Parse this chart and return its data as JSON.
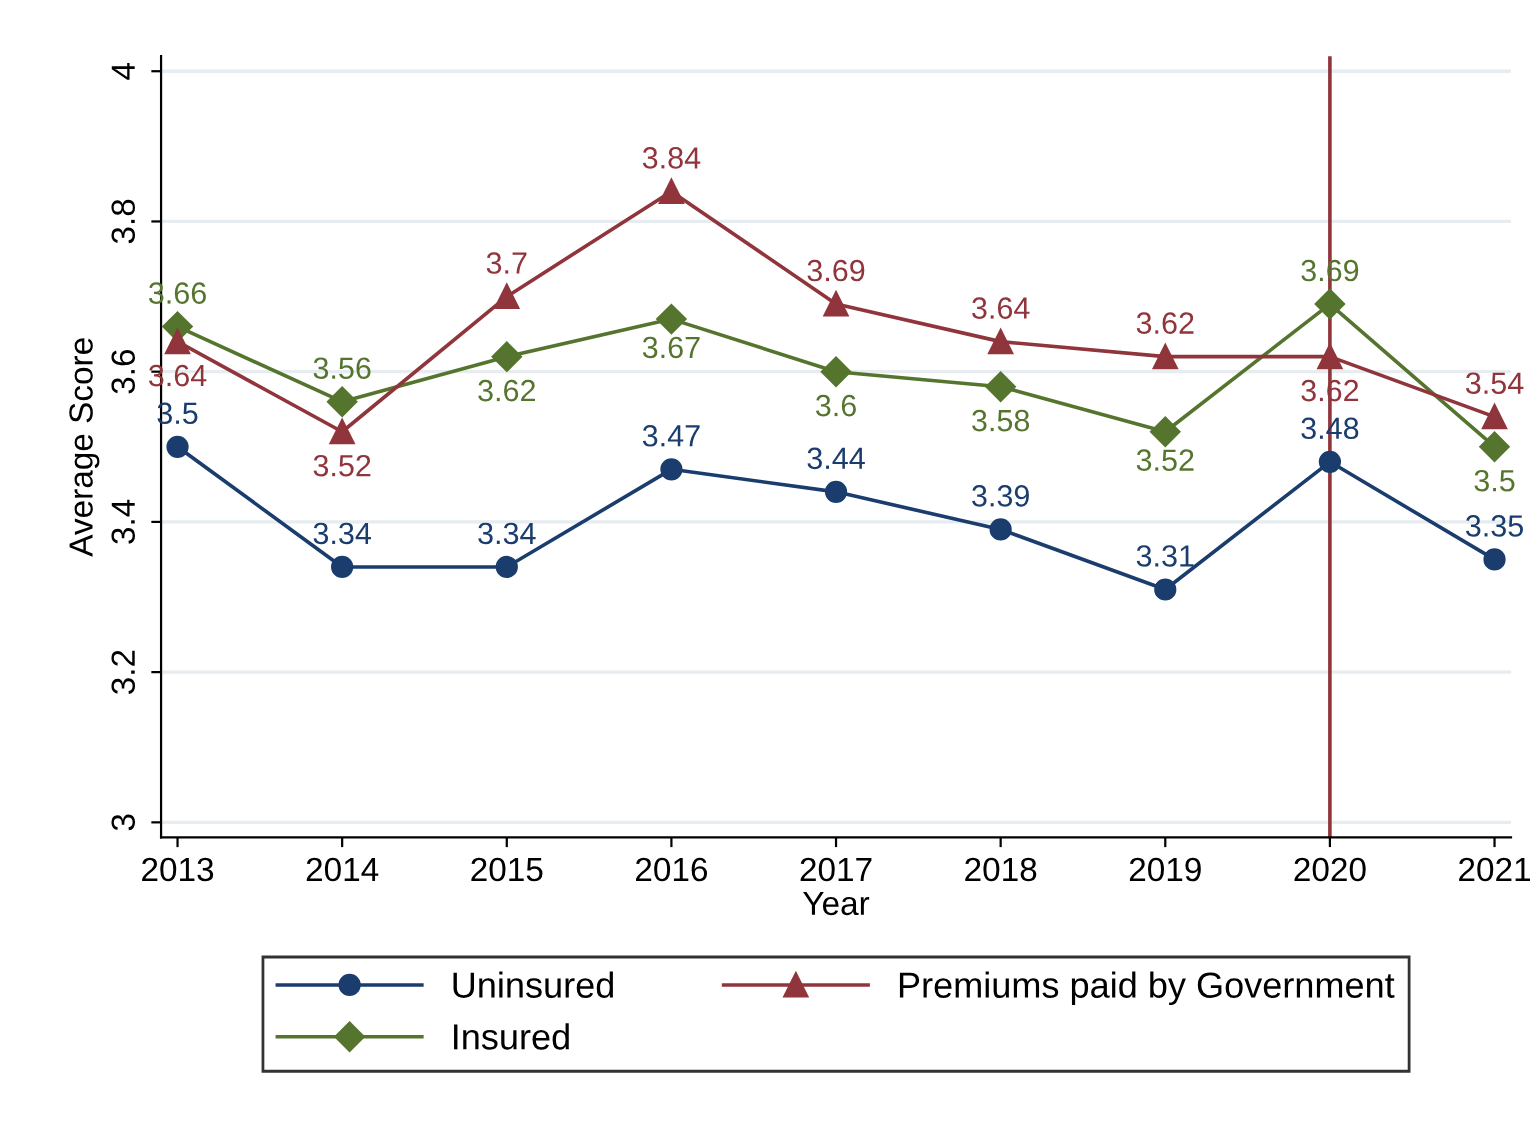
{
  "chart_data": {
    "type": "line",
    "xlabel": "Year",
    "ylabel": "Average Score",
    "x": [
      2013,
      2014,
      2015,
      2016,
      2017,
      2018,
      2019,
      2020,
      2021
    ],
    "series": [
      {
        "name": "Uninsured",
        "color": "#1a3d6e",
        "marker": "circle",
        "values": [
          3.5,
          3.34,
          3.34,
          3.47,
          3.44,
          3.39,
          3.31,
          3.48,
          3.35
        ]
      },
      {
        "name": "Insured",
        "color": "#55752f",
        "marker": "diamond",
        "values": [
          3.66,
          3.56,
          3.62,
          3.67,
          3.6,
          3.58,
          3.52,
          3.69,
          3.5
        ]
      },
      {
        "name": "Premiums paid by Government",
        "color": "#90353b",
        "marker": "triangle",
        "values": [
          3.64,
          3.52,
          3.7,
          3.84,
          3.69,
          3.64,
          3.62,
          3.62,
          3.54
        ]
      }
    ],
    "xlim": [
      2012.9,
      2021.1
    ],
    "xticks": [
      2013,
      2014,
      2015,
      2016,
      2017,
      2018,
      2019,
      2020,
      2021
    ],
    "ylim": [
      2.98,
      4.02
    ],
    "yticks": [
      3,
      3.2,
      3.4,
      3.6,
      3.8,
      4
    ],
    "ref_lines": [
      {
        "axis": "x",
        "value": 2020,
        "color": "#90353b"
      }
    ],
    "data_labels": true,
    "grid": "y",
    "legend": "bottom",
    "line_style": "solid"
  }
}
